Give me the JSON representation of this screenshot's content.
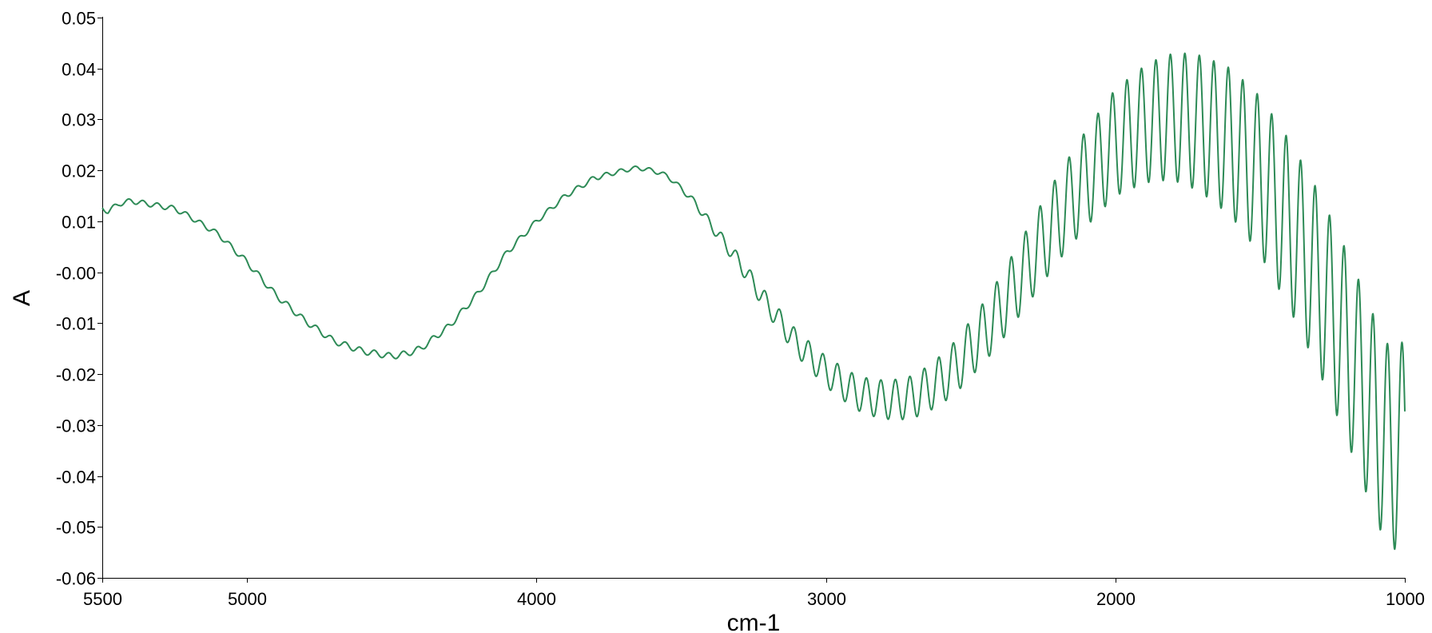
{
  "chart_data": {
    "type": "line",
    "title": "",
    "xlabel": "cm-1",
    "ylabel": "A",
    "xlim": [
      5500,
      1000
    ],
    "ylim": [
      -0.06,
      0.05
    ],
    "x_reversed": true,
    "grid": false,
    "x_ticks": [
      {
        "value": 5500,
        "label": "5500"
      },
      {
        "value": 5000,
        "label": "5000"
      },
      {
        "value": 4000,
        "label": "4000"
      },
      {
        "value": 3000,
        "label": "3000"
      },
      {
        "value": 2000,
        "label": "2000"
      },
      {
        "value": 1000,
        "label": "1000"
      }
    ],
    "y_ticks": [
      {
        "value": 0.05,
        "label": "0.05"
      },
      {
        "value": 0.04,
        "label": "0.04"
      },
      {
        "value": 0.03,
        "label": "0.03"
      },
      {
        "value": 0.02,
        "label": "0.02"
      },
      {
        "value": 0.01,
        "label": "0.01"
      },
      {
        "value": 0.0,
        "label": "-0.00"
      },
      {
        "value": -0.01,
        "label": "-0.01"
      },
      {
        "value": -0.02,
        "label": "-0.02"
      },
      {
        "value": -0.03,
        "label": "-0.03"
      },
      {
        "value": -0.04,
        "label": "-0.04"
      },
      {
        "value": -0.05,
        "label": "-0.05"
      },
      {
        "value": -0.06,
        "label": "-0.06"
      }
    ],
    "series": [
      {
        "color": "#2e8b57",
        "x": [
          5500,
          5480,
          5440,
          5400,
          5350,
          5300,
          5250,
          5200,
          5100,
          5000,
          4900,
          4800,
          4700,
          4600,
          4500,
          4450,
          4400,
          4300,
          4200,
          4100,
          4000,
          3900,
          3800,
          3700,
          3650,
          3600,
          3550,
          3500,
          3450,
          3400,
          3300,
          3200,
          3100,
          3000,
          2950,
          2900,
          2850,
          2800,
          2750,
          2700,
          2650,
          2600,
          2550,
          2500,
          2450,
          2400,
          2300,
          2200,
          2100,
          2000,
          1900,
          1850,
          1800,
          1750,
          1700,
          1600,
          1500,
          1400,
          1300,
          1200,
          1100,
          1060,
          1040,
          1000
        ],
        "y": [
          0.0125,
          0.012,
          0.0135,
          0.014,
          0.0135,
          0.013,
          0.0125,
          0.011,
          0.0075,
          0.002,
          -0.0045,
          -0.0095,
          -0.0135,
          -0.0155,
          -0.0165,
          -0.016,
          -0.015,
          -0.0105,
          -0.004,
          0.004,
          0.01,
          0.015,
          0.0185,
          0.02,
          0.0205,
          0.02,
          0.019,
          0.0165,
          0.0135,
          0.0095,
          0.002,
          -0.0065,
          -0.014,
          -0.0195,
          -0.0215,
          -0.0235,
          -0.0245,
          -0.025,
          -0.025,
          -0.0245,
          -0.023,
          -0.021,
          -0.0185,
          -0.015,
          -0.0115,
          -0.0075,
          0.0015,
          0.0105,
          0.0185,
          0.0255,
          0.029,
          0.03,
          0.0305,
          0.03,
          0.029,
          0.0255,
          0.019,
          0.0095,
          -0.0015,
          -0.0145,
          -0.029,
          -0.034,
          -0.0345,
          -0.0335
        ],
        "ripple_amplitude": [
          0.0005,
          0.0005,
          0.0005,
          0.0005,
          0.0005,
          0.0005,
          0.0005,
          0.0005,
          0.0005,
          0.0006,
          0.0006,
          0.0006,
          0.0006,
          0.0006,
          0.0006,
          0.0006,
          0.0006,
          0.0006,
          0.0006,
          0.0006,
          0.0005,
          0.0005,
          0.0005,
          0.0004,
          0.0004,
          0.0004,
          0.0004,
          0.0005,
          0.0007,
          0.001,
          0.0015,
          0.002,
          0.0025,
          0.003,
          0.0032,
          0.0034,
          0.0036,
          0.0038,
          0.004,
          0.0042,
          0.0045,
          0.0048,
          0.0052,
          0.0056,
          0.006,
          0.0065,
          0.0075,
          0.0085,
          0.0095,
          0.0105,
          0.0115,
          0.012,
          0.0125,
          0.013,
          0.0135,
          0.0145,
          0.0155,
          0.0165,
          0.0175,
          0.0185,
          0.0195,
          0.02,
          0.02,
          0.02
        ],
        "ripple_period_cm1": 50
      }
    ]
  }
}
